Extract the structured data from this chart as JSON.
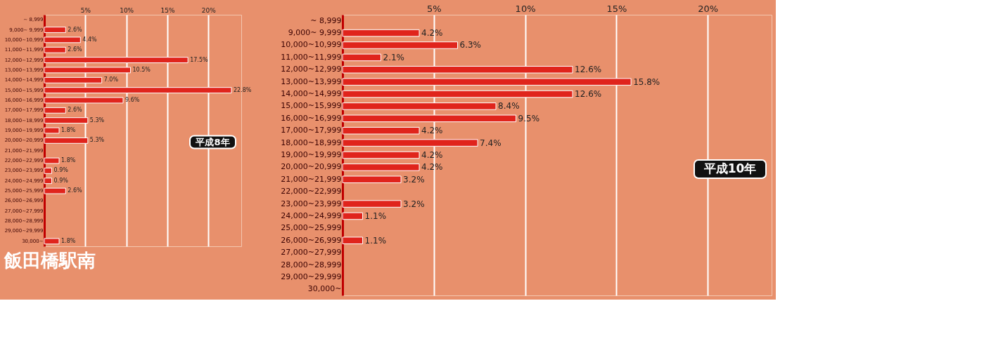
{
  "chart_data": [
    {
      "type": "bar",
      "orientation": "horizontal",
      "title": "飯田橋駅南",
      "annotations": [
        "平成8年"
      ],
      "categories": [
        "~ 8,999",
        "9,000~ 9,999",
        "10,000~10,999",
        "11,000~11,999",
        "12,000~12,999",
        "13,000~13,999",
        "14,000~14,999",
        "15,000~15,999",
        "16,000~16,999",
        "17,000~17,999",
        "18,000~18,999",
        "19,000~19,999",
        "20,000~20,999",
        "21,000~21,999",
        "22,000~22,999",
        "23,000~23,999",
        "24,000~24,999",
        "25,000~25,999",
        "26,000~26,999",
        "27,000~27,999",
        "28,000~28,999",
        "29,000~29,999",
        "30,000~"
      ],
      "values": [
        null,
        2.6,
        4.4,
        2.6,
        17.5,
        10.5,
        7.0,
        22.8,
        9.6,
        2.6,
        5.3,
        1.8,
        5.3,
        null,
        1.8,
        0.9,
        0.9,
        2.6,
        null,
        null,
        null,
        null,
        1.8
      ],
      "value_labels": [
        null,
        "2.6%",
        "4.4%",
        "2.6%",
        "17.5%",
        "10.5%",
        "7.0%",
        "22.8%",
        "9.6%",
        "2.6%",
        "5.3%",
        "1.8%",
        "5.3%",
        null,
        "1.8%",
        "0.9%",
        "0.9%",
        "2.6%",
        null,
        null,
        null,
        null,
        "1.8%"
      ],
      "color": "#e0241c",
      "xlim": [
        0,
        24
      ],
      "xticks": [
        {
          "value": 5,
          "label": "5%"
        },
        {
          "value": 10,
          "label": "10%"
        },
        {
          "value": 15,
          "label": "15%"
        },
        {
          "value": 20,
          "label": "20%"
        }
      ],
      "grid": "x"
    },
    {
      "type": "bar",
      "orientation": "horizontal",
      "annotations": [
        "平成10年"
      ],
      "categories": [
        "~ 8,999",
        "9,000~ 9,999",
        "10,000~10,999",
        "11,000~11,999",
        "12,000~12,999",
        "13,000~13,999",
        "14,000~14,999",
        "15,000~15,999",
        "16,000~16,999",
        "17,000~17,999",
        "18,000~18,999",
        "19,000~19,999",
        "20,000~20,999",
        "21,000~21,999",
        "22,000~22,999",
        "23,000~23,999",
        "24,000~24,999",
        "25,000~25,999",
        "26,000~26,999",
        "27,000~27,999",
        "28,000~28,999",
        "29,000~29,999",
        "30,000~"
      ],
      "values": [
        null,
        4.2,
        6.3,
        2.1,
        12.6,
        15.8,
        12.6,
        8.4,
        9.5,
        4.2,
        7.4,
        4.2,
        4.2,
        3.2,
        null,
        3.2,
        1.1,
        null,
        1.1,
        null,
        null,
        null,
        null
      ],
      "value_labels": [
        null,
        "4.2%",
        "6.3%",
        "2.1%",
        "12.6%",
        "15.8%",
        "12.6%",
        "8.4%",
        "9.5%",
        "4.2%",
        "7.4%",
        "4.2%",
        "4.2%",
        "3.2%",
        null,
        "3.2%",
        "1.1%",
        null,
        "1.1%",
        null,
        null,
        null,
        null
      ],
      "color": "#e0241c",
      "xlim": [
        0,
        23.5
      ],
      "xticks": [
        {
          "value": 5,
          "label": "5%"
        },
        {
          "value": 10,
          "label": "10%"
        },
        {
          "value": 15,
          "label": "15%"
        },
        {
          "value": 20,
          "label": "20%"
        }
      ],
      "grid": "x"
    }
  ]
}
